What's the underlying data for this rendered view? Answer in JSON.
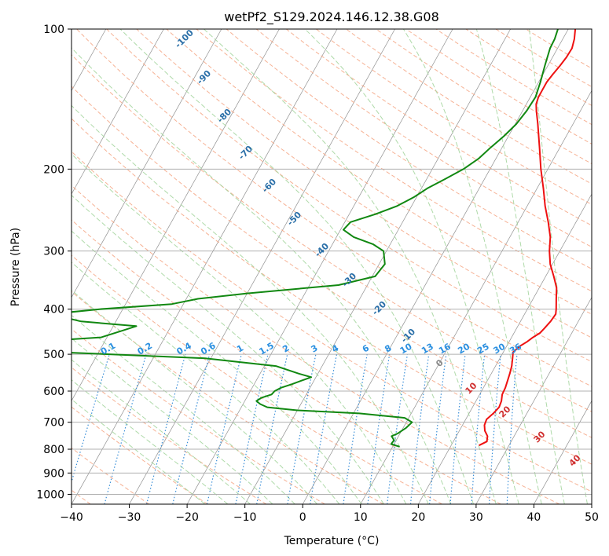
{
  "chart_data": {
    "type": "line",
    "title": "wetPf2_S129.2024.146.12.38.G08",
    "xlabel": "Temperature (°C)",
    "ylabel": "Pressure (hPa)",
    "xlim": [
      -40,
      50
    ],
    "ylim": [
      1050,
      100
    ],
    "y_scale": "log",
    "grid": true,
    "x_ticks": [
      -40,
      -30,
      -20,
      -10,
      0,
      10,
      20,
      30,
      40,
      50
    ],
    "x_tick_labels": [
      "−40",
      "−30",
      "−20",
      "−10",
      "0",
      "10",
      "20",
      "30",
      "40",
      "50"
    ],
    "y_ticks": [
      100,
      200,
      300,
      400,
      500,
      600,
      700,
      800,
      900,
      1000
    ],
    "y_tick_labels": [
      "100",
      "200",
      "300",
      "400",
      "500",
      "600",
      "700",
      "800",
      "900",
      "1000"
    ],
    "skew_deg_per_decade": 45,
    "series": [
      {
        "color": "#ee1111",
        "points": [
          [
            785,
            24.8
          ],
          [
            770,
            25.8
          ],
          [
            750,
            25.4
          ],
          [
            730,
            24.4
          ],
          [
            710,
            23.8
          ],
          [
            690,
            23.6
          ],
          [
            670,
            24.2
          ],
          [
            650,
            24.6
          ],
          [
            630,
            24.4
          ],
          [
            610,
            23.9
          ],
          [
            590,
            23.8
          ],
          [
            570,
            23.5
          ],
          [
            550,
            23.2
          ],
          [
            530,
            22.8
          ],
          [
            510,
            22.2
          ],
          [
            495,
            21.7
          ],
          [
            480,
            22.3
          ],
          [
            470,
            23.1
          ],
          [
            460,
            23.7
          ],
          [
            450,
            24.5
          ],
          [
            440,
            24.8
          ],
          [
            425,
            25.2
          ],
          [
            410,
            25.4
          ],
          [
            400,
            25.0
          ],
          [
            380,
            24.0
          ],
          [
            360,
            23.0
          ],
          [
            340,
            21.4
          ],
          [
            320,
            19.6
          ],
          [
            300,
            18.2
          ],
          [
            280,
            17.0
          ],
          [
            260,
            15.2
          ],
          [
            240,
            13.1
          ],
          [
            220,
            11.1
          ],
          [
            200,
            8.8
          ],
          [
            180,
            6.5
          ],
          [
            160,
            3.9
          ],
          [
            150,
            2.4
          ],
          [
            145,
            1.7
          ],
          [
            140,
            1.4
          ],
          [
            135,
            1.4
          ],
          [
            130,
            1.4
          ],
          [
            125,
            1.7
          ],
          [
            120,
            2.1
          ],
          [
            115,
            2.4
          ],
          [
            110,
            2.5
          ],
          [
            105,
            2.0
          ],
          [
            100,
            1.2
          ]
        ]
      },
      {
        "color": "#118811",
        "points": [
          [
            790,
            11.2
          ],
          [
            780,
            9.5
          ],
          [
            765,
            9.6
          ],
          [
            750,
            8.8
          ],
          [
            740,
            9.6
          ],
          [
            720,
            10.5
          ],
          [
            700,
            11.0
          ],
          [
            685,
            9.3
          ],
          [
            670,
            1.0
          ],
          [
            660,
            -10.0
          ],
          [
            650,
            -15.5
          ],
          [
            640,
            -17.0
          ],
          [
            630,
            -18.0
          ],
          [
            620,
            -17.4
          ],
          [
            610,
            -16.0
          ],
          [
            600,
            -15.8
          ],
          [
            590,
            -15.0
          ],
          [
            580,
            -13.5
          ],
          [
            570,
            -12.2
          ],
          [
            560,
            -10.8
          ],
          [
            550,
            -13.4
          ],
          [
            530,
            -18.0
          ],
          [
            510,
            -31.0
          ],
          [
            500,
            -48.0
          ],
          [
            490,
            -66.0
          ],
          [
            475,
            -68.0
          ],
          [
            460,
            -51.0
          ],
          [
            445,
            -48.0
          ],
          [
            435,
            -46.0
          ],
          [
            425,
            -56.0
          ],
          [
            410,
            -62.0
          ],
          [
            400,
            -54.0
          ],
          [
            390,
            -42.0
          ],
          [
            380,
            -38.0
          ],
          [
            370,
            -30.0
          ],
          [
            355,
            -15.0
          ],
          [
            340,
            -9.5
          ],
          [
            320,
            -9.0
          ],
          [
            300,
            -10.5
          ],
          [
            290,
            -13.0
          ],
          [
            280,
            -17.0
          ],
          [
            270,
            -19.5
          ],
          [
            260,
            -19.0
          ],
          [
            250,
            -15.5
          ],
          [
            240,
            -12.5
          ],
          [
            230,
            -10.5
          ],
          [
            220,
            -9.0
          ],
          [
            210,
            -6.8
          ],
          [
            200,
            -4.6
          ],
          [
            190,
            -3.0
          ],
          [
            180,
            -2.0
          ],
          [
            170,
            -0.8
          ],
          [
            160,
            0.2
          ],
          [
            150,
            0.7
          ],
          [
            140,
            0.9
          ],
          [
            130,
            0.3
          ],
          [
            120,
            -0.5
          ],
          [
            110,
            -1.3
          ],
          [
            105,
            -1.4
          ],
          [
            100,
            -1.8
          ]
        ]
      }
    ],
    "dry_adiabat_labels": [
      {
        "text": "-100",
        "value": -100
      },
      {
        "text": "-90",
        "value": -90
      },
      {
        "text": "-80",
        "value": -80
      },
      {
        "text": "-70",
        "value": -70
      },
      {
        "text": "-60",
        "value": -60
      },
      {
        "text": "-50",
        "value": -50
      },
      {
        "text": "-40",
        "value": -40
      },
      {
        "text": "-30",
        "value": -30
      },
      {
        "text": "-20",
        "value": -20
      },
      {
        "text": "-10",
        "value": -10
      }
    ],
    "mixing_ratio_labels": [
      "0.1",
      "0.2",
      "0.4",
      "0.6",
      "1",
      "1.5",
      "2",
      "3",
      "4",
      "6",
      "8",
      "10",
      "13",
      "16",
      "20",
      "25",
      "30",
      "36"
    ],
    "moist_adiabat_labels": [
      "0",
      "10",
      "20",
      "30",
      "40"
    ],
    "colors": {
      "temperature": "#ee1111",
      "dewpoint": "#118811",
      "dry_adiabat": "#f4a582",
      "moist_adiabat": "#a6d6a0",
      "mixing_ratio": "#3a8fd8",
      "isotherm": "#909090",
      "dry_label": "#2a6fa8",
      "mixing_label": "#2a8fe0",
      "moist_label_zero": "#888888",
      "moist_label": "#d03030"
    }
  }
}
